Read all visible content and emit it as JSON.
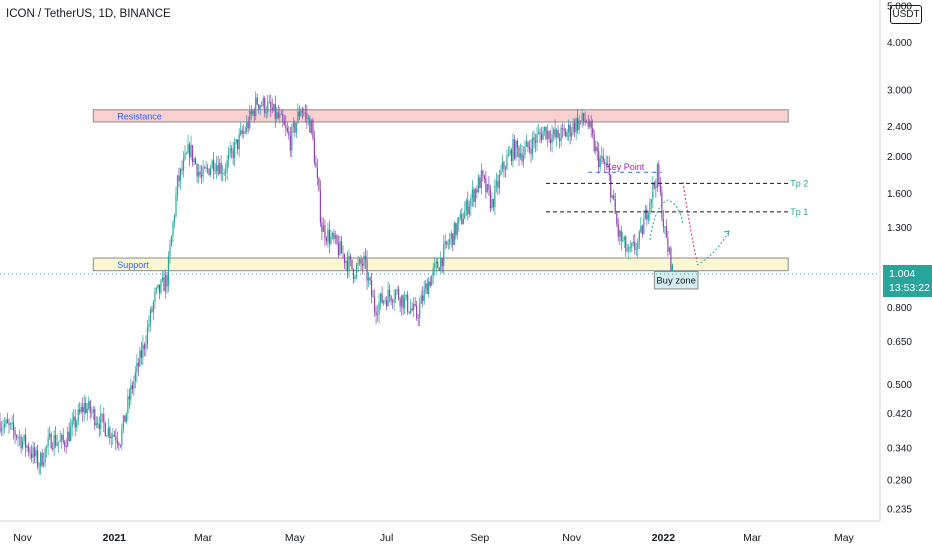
{
  "header": {
    "title": "ICON / TetherUS, 1D, BINANCE",
    "currency": "USDT"
  },
  "price_tag": {
    "price": "1.004",
    "countdown": "13:53:22"
  },
  "chart_data": {
    "type": "candlestick",
    "y_scale": "log",
    "ylim": [
      0.225,
      5.0
    ],
    "y_ticks": [
      "5.000",
      "4.000",
      "3.000",
      "2.400",
      "2.000",
      "1.600",
      "1.300",
      "1.004",
      "0.800",
      "0.650",
      "0.500",
      "0.420",
      "0.340",
      "0.280",
      "0.235"
    ],
    "x_ticks": [
      "Nov",
      "2021",
      "Mar",
      "May",
      "Jul",
      "Sep",
      "Nov",
      "2022",
      "Mar",
      "May"
    ],
    "x_range": [
      "2020-10-17",
      "2022-05-25"
    ],
    "series": [
      {
        "values_path": [
          [
            "2020-10-17",
            0.4
          ],
          [
            "2020-10-28",
            0.37
          ],
          [
            "2020-11-05",
            0.34
          ],
          [
            "2020-11-12",
            0.31
          ],
          [
            "2020-11-20",
            0.36
          ],
          [
            "2020-11-28",
            0.35
          ],
          [
            "2020-12-05",
            0.39
          ],
          [
            "2020-12-12",
            0.44
          ],
          [
            "2020-12-20",
            0.41
          ],
          [
            "2020-12-28",
            0.38
          ],
          [
            "2021-01-05",
            0.36
          ],
          [
            "2021-01-12",
            0.48
          ],
          [
            "2021-01-20",
            0.62
          ],
          [
            "2021-01-28",
            0.85
          ],
          [
            "2021-02-05",
            0.95
          ],
          [
            "2021-02-12",
            1.7
          ],
          [
            "2021-02-20",
            2.1
          ],
          [
            "2021-02-28",
            1.75
          ],
          [
            "2021-03-08",
            1.95
          ],
          [
            "2021-03-15",
            1.85
          ],
          [
            "2021-03-22",
            2.1
          ],
          [
            "2021-03-30",
            2.4
          ],
          [
            "2021-04-06",
            2.8
          ],
          [
            "2021-04-13",
            2.7
          ],
          [
            "2021-04-21",
            2.5
          ],
          [
            "2021-04-28",
            2.2
          ],
          [
            "2021-05-05",
            2.7
          ],
          [
            "2021-05-12",
            2.4
          ],
          [
            "2021-05-19",
            1.3
          ],
          [
            "2021-05-26",
            1.2
          ],
          [
            "2021-06-02",
            1.1
          ],
          [
            "2021-06-09",
            1.0
          ],
          [
            "2021-06-16",
            1.05
          ],
          [
            "2021-06-23",
            0.8
          ],
          [
            "2021-06-30",
            0.85
          ],
          [
            "2021-07-07",
            0.88
          ],
          [
            "2021-07-14",
            0.82
          ],
          [
            "2021-07-21",
            0.76
          ],
          [
            "2021-07-28",
            0.92
          ],
          [
            "2021-08-05",
            1.05
          ],
          [
            "2021-08-12",
            1.2
          ],
          [
            "2021-08-19",
            1.35
          ],
          [
            "2021-08-26",
            1.55
          ],
          [
            "2021-09-02",
            1.75
          ],
          [
            "2021-09-09",
            1.5
          ],
          [
            "2021-09-16",
            1.85
          ],
          [
            "2021-09-23",
            2.1
          ],
          [
            "2021-09-30",
            2.05
          ],
          [
            "2021-10-07",
            2.2
          ],
          [
            "2021-10-14",
            2.35
          ],
          [
            "2021-10-21",
            2.25
          ],
          [
            "2021-10-28",
            2.3
          ],
          [
            "2021-11-04",
            2.45
          ],
          [
            "2021-11-11",
            2.5
          ],
          [
            "2021-11-18",
            2.0
          ],
          [
            "2021-11-25",
            1.85
          ],
          [
            "2021-12-02",
            1.25
          ],
          [
            "2021-12-09",
            1.1
          ],
          [
            "2021-12-16",
            1.2
          ],
          [
            "2021-12-23",
            1.55
          ],
          [
            "2021-12-28",
            1.8
          ],
          [
            "2022-01-02",
            1.25
          ],
          [
            "2022-01-07",
            1.0
          ]
        ]
      }
    ],
    "zones": [
      {
        "label": "Resistance",
        "ymin": 2.47,
        "ymax": 2.66,
        "x0": "2020-12-18",
        "x1": "2022-03-25"
      },
      {
        "label": "Support",
        "ymin": 1.0,
        "ymax": 1.08,
        "x0": "2020-12-18",
        "x1": "2022-03-25"
      }
    ],
    "annotations": [
      {
        "label": "Key Point",
        "y": 1.82,
        "x0": "2021-11-12",
        "x1": "2021-12-31"
      },
      {
        "label": "Tp 2",
        "y": 1.7,
        "x0": "2021-10-15",
        "x1": "2022-03-25"
      },
      {
        "label": "Tp 1",
        "y": 1.43,
        "x0": "2021-10-15",
        "x1": "2022-03-25"
      },
      {
        "label": "Buy zone",
        "y_top": 0.995,
        "y_bottom": 0.895,
        "x0": "2021-12-26",
        "x1": "2022-01-24"
      }
    ]
  }
}
